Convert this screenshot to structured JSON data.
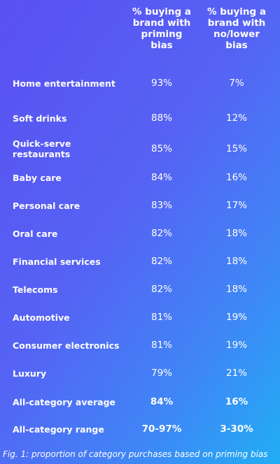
{
  "chart_data": {
    "type": "table",
    "columns": [
      "% buying a brand with priming bias",
      "% buying a brand with no/lower bias"
    ],
    "rows": [
      {
        "category": "Home entertainment",
        "priming": "93%",
        "no_lower": "7%"
      },
      {
        "category": "Soft drinks",
        "priming": "88%",
        "no_lower": "12%"
      },
      {
        "category": "Quick-serve restaurants",
        "priming": "85%",
        "no_lower": "15%"
      },
      {
        "category": "Baby care",
        "priming": "84%",
        "no_lower": "16%"
      },
      {
        "category": "Personal care",
        "priming": "83%",
        "no_lower": "17%"
      },
      {
        "category": "Oral care",
        "priming": "82%",
        "no_lower": "18%"
      },
      {
        "category": "Financial services",
        "priming": "82%",
        "no_lower": "18%"
      },
      {
        "category": "Telecoms",
        "priming": "82%",
        "no_lower": "18%"
      },
      {
        "category": "Automotive",
        "priming": "81%",
        "no_lower": "19%"
      },
      {
        "category": "Consumer electronics",
        "priming": "81%",
        "no_lower": "19%"
      },
      {
        "category": "Luxury",
        "priming": "79%",
        "no_lower": "21%"
      }
    ],
    "summary_rows": [
      {
        "category": "All-category average",
        "priming": "84%",
        "no_lower": "16%"
      },
      {
        "category": "All-category range",
        "priming": "70-97%",
        "no_lower": "3-30%"
      }
    ]
  },
  "caption": "Fig. 1: proportion of category purchases based on priming bias",
  "colors": {
    "gradient_start": "#5a50f2",
    "gradient_end": "#21aef4",
    "text": "#ffffff"
  }
}
